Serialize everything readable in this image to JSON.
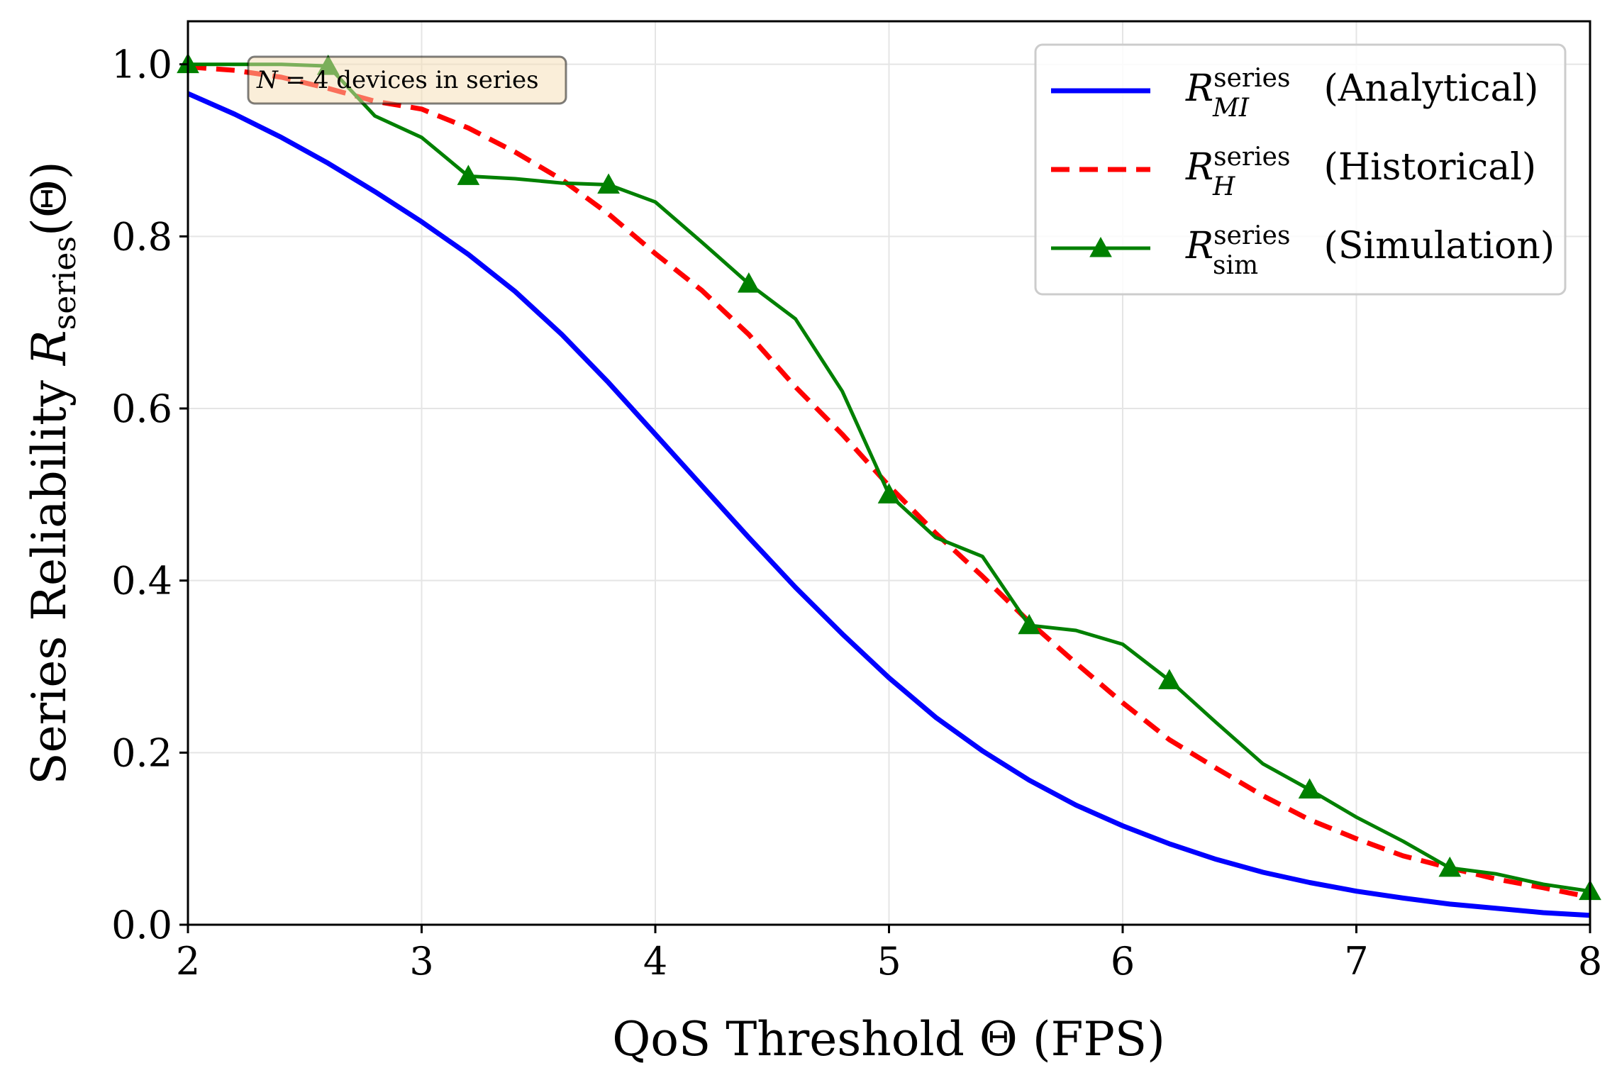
{
  "chart_data": {
    "type": "line",
    "xlabel": "QoS Threshold Θ (FPS)",
    "ylabel": {
      "prefix": "Series Reliability ",
      "var": "R",
      "sub": "series",
      "suffix": "(Θ)"
    },
    "xlim": [
      2,
      8
    ],
    "ylim": [
      0,
      1.05
    ],
    "x_ticks": [
      2,
      3,
      4,
      5,
      6,
      7,
      8
    ],
    "x_tick_labels": [
      "2",
      "3",
      "4",
      "5",
      "6",
      "7",
      "8"
    ],
    "y_ticks": [
      0,
      0.2,
      0.4,
      0.6,
      0.8,
      1.0
    ],
    "y_tick_labels": [
      "0.0",
      "0.2",
      "0.4",
      "0.6",
      "0.8",
      "1.0"
    ],
    "grid": true,
    "legend_position": "top-right",
    "annotation": {
      "var": "N",
      "text": " = 4 devices in series"
    },
    "series": [
      {
        "var": "R",
        "sup": "series",
        "sub": "MI",
        "desc": "(Analytical)",
        "color": "#0000ff",
        "style": "solid",
        "marker": "none",
        "x": [
          2.0,
          2.2,
          2.4,
          2.6,
          2.8,
          3.0,
          3.2,
          3.4,
          3.6,
          3.8,
          4.0,
          4.2,
          4.4,
          4.6,
          4.8,
          5.0,
          5.2,
          5.4,
          5.6,
          5.8,
          6.0,
          6.2,
          6.4,
          6.6,
          6.8,
          7.0,
          7.2,
          7.4,
          7.6,
          7.8,
          8.0
        ],
        "y": [
          0.966,
          0.942,
          0.915,
          0.885,
          0.852,
          0.817,
          0.779,
          0.736,
          0.686,
          0.63,
          0.57,
          0.51,
          0.45,
          0.392,
          0.338,
          0.287,
          0.241,
          0.202,
          0.168,
          0.139,
          0.115,
          0.094,
          0.076,
          0.061,
          0.049,
          0.039,
          0.031,
          0.024,
          0.019,
          0.014,
          0.011
        ]
      },
      {
        "var": "R",
        "sup": "series",
        "sub": "H",
        "desc": "(Historical)",
        "color": "#ff0000",
        "style": "dashed",
        "marker": "none",
        "x": [
          2.0,
          2.2,
          2.4,
          2.6,
          2.8,
          3.0,
          3.2,
          3.4,
          3.6,
          3.8,
          4.0,
          4.2,
          4.4,
          4.6,
          4.8,
          5.0,
          5.2,
          5.4,
          5.6,
          5.8,
          6.0,
          6.2,
          6.4,
          6.6,
          6.8,
          7.0,
          7.2,
          7.4,
          7.6,
          7.8,
          8.0
        ],
        "y": [
          0.997,
          0.993,
          0.985,
          0.972,
          0.957,
          0.948,
          0.926,
          0.898,
          0.866,
          0.826,
          0.78,
          0.737,
          0.686,
          0.625,
          0.57,
          0.51,
          0.455,
          0.405,
          0.352,
          0.304,
          0.258,
          0.215,
          0.182,
          0.15,
          0.122,
          0.1,
          0.08,
          0.066,
          0.053,
          0.043,
          0.032
        ]
      },
      {
        "var": "R",
        "sup": "series",
        "sub": "sim",
        "desc": "(Simulation)",
        "color": "#008000",
        "style": "solid",
        "marker": "triangle",
        "x": [
          2.0,
          2.2,
          2.4,
          2.6,
          2.8,
          3.0,
          3.2,
          3.4,
          3.6,
          3.8,
          4.0,
          4.2,
          4.4,
          4.6,
          4.8,
          5.0,
          5.2,
          5.4,
          5.6,
          5.8,
          6.0,
          6.2,
          6.4,
          6.6,
          6.8,
          7.0,
          7.2,
          7.4,
          7.6,
          7.8,
          8.0
        ],
        "y": [
          1.0,
          1.0,
          1.0,
          0.998,
          0.94,
          0.915,
          0.87,
          0.867,
          0.862,
          0.86,
          0.84,
          0.793,
          0.745,
          0.704,
          0.62,
          0.5,
          0.45,
          0.428,
          0.348,
          0.342,
          0.326,
          0.284,
          0.235,
          0.187,
          0.157,
          0.125,
          0.097,
          0.066,
          0.059,
          0.047,
          0.039
        ],
        "marker_x": [
          2.0,
          2.6,
          3.2,
          3.8,
          4.4,
          5.0,
          5.6,
          6.2,
          6.8,
          7.4,
          8.0
        ]
      }
    ]
  }
}
